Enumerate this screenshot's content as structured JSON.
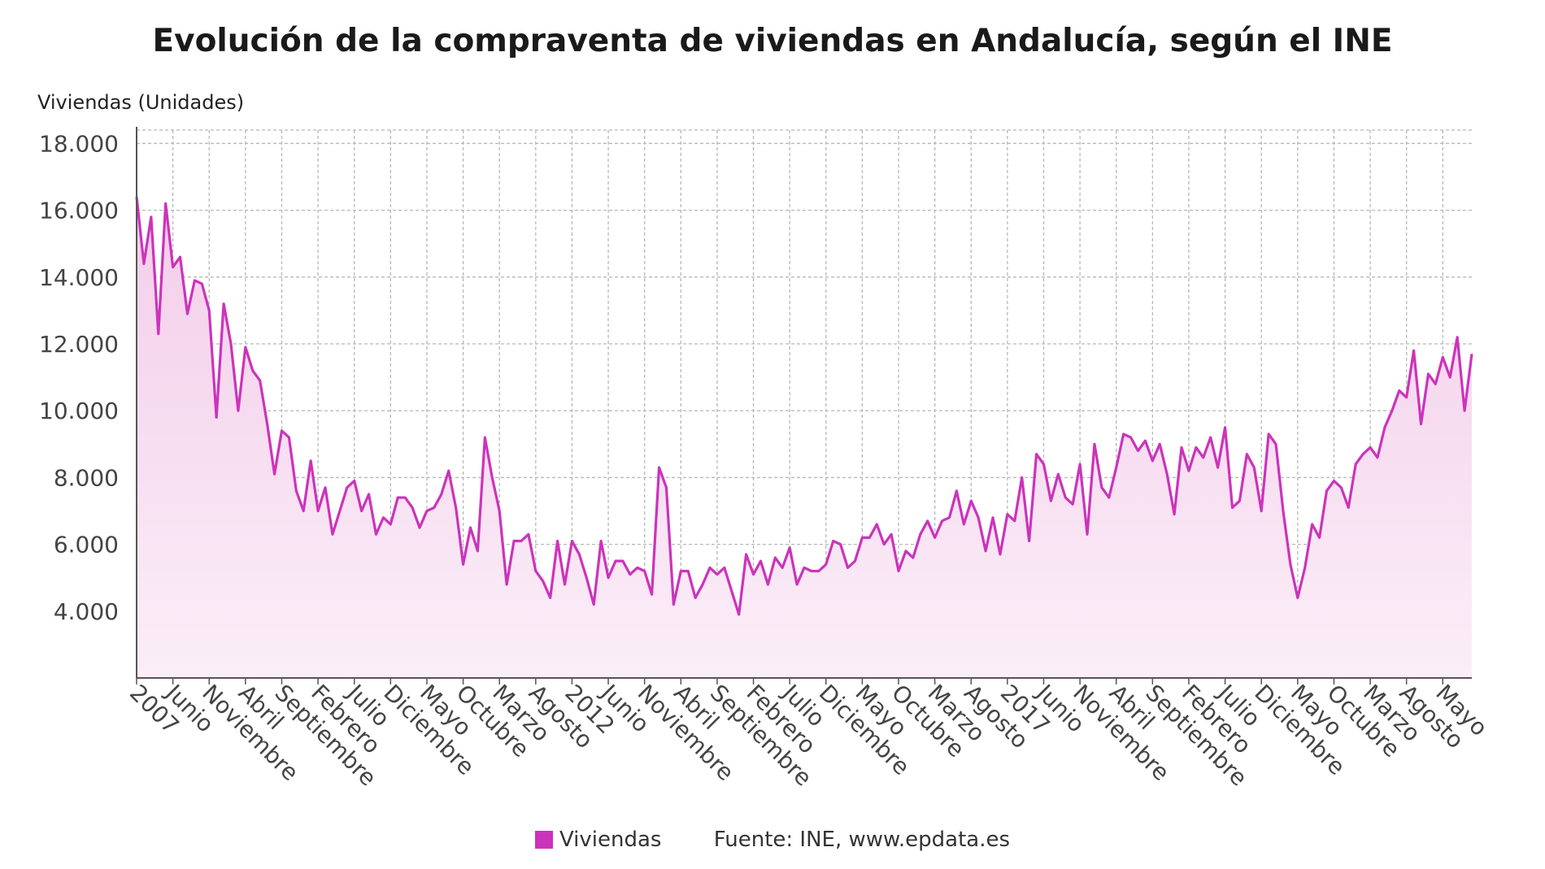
{
  "chart_data": {
    "type": "area",
    "title": "Evolución de la compraventa de viviendas en Andalucía, según el INE",
    "ylabel": "Viviendas (Unidades)",
    "xlabel": "",
    "ylim": [
      2000,
      18400
    ],
    "yticks": [
      4000,
      6000,
      8000,
      10000,
      12000,
      14000,
      16000,
      18000
    ],
    "ytick_labels": [
      "4.000",
      "6.000",
      "8.000",
      "10.000",
      "12.000",
      "14.000",
      "16.000",
      "18.000"
    ],
    "grid": true,
    "start": "2007-01",
    "tick_step_months": 5,
    "x_tick_labels": [
      "2007",
      "Junio",
      "Noviembre",
      "Abril",
      "Septiembre",
      "Febrero",
      "Julio",
      "Diciembre",
      "Mayo",
      "Octubre",
      "Marzo",
      "Agosto",
      "2012",
      "Junio",
      "Noviembre",
      "Abril",
      "Septiembre",
      "Febrero",
      "Julio",
      "Diciembre",
      "Mayo",
      "Octubre",
      "Marzo",
      "Agosto",
      "2017",
      "Junio",
      "Noviembre",
      "Abril",
      "Septiembre",
      "Febrero",
      "Julio",
      "Diciembre",
      "Mayo",
      "Octubre",
      "Marzo",
      "Agosto",
      "Mayo"
    ],
    "series": [
      {
        "name": "Viviendas",
        "color": "#cc33bb",
        "values": [
          16400,
          14400,
          15800,
          12300,
          16200,
          14300,
          14600,
          12900,
          13900,
          13800,
          13000,
          9800,
          13200,
          12000,
          10000,
          11900,
          11200,
          10900,
          9600,
          8100,
          9400,
          9200,
          7600,
          7000,
          8500,
          7000,
          7700,
          6300,
          7000,
          7700,
          7900,
          7000,
          7500,
          6300,
          6800,
          6600,
          7400,
          7400,
          7100,
          6500,
          7000,
          7100,
          7500,
          8200,
          7100,
          5400,
          6500,
          5800,
          9200,
          8000,
          7000,
          4800,
          6100,
          6100,
          6300,
          5200,
          4900,
          4400,
          6100,
          4800,
          6100,
          5700,
          5000,
          4200,
          6100,
          5000,
          5500,
          5500,
          5100,
          5300,
          5200,
          4500,
          8300,
          7700,
          4200,
          5200,
          5200,
          4400,
          4800,
          5300,
          5100,
          5300,
          4600,
          3900,
          5700,
          5100,
          5500,
          4800,
          5600,
          5300,
          5900,
          4800,
          5300,
          5200,
          5200,
          5400,
          6100,
          6000,
          5300,
          5500,
          6200,
          6200,
          6600,
          6000,
          6300,
          5200,
          5800,
          5600,
          6300,
          6700,
          6200,
          6700,
          6800,
          7600,
          6600,
          7300,
          6800,
          5800,
          6800,
          5700,
          6900,
          6700,
          8000,
          6100,
          8700,
          8400,
          7300,
          8100,
          7400,
          7200,
          8400,
          6300,
          9000,
          7700,
          7400,
          8300,
          9300,
          9200,
          8800,
          9100,
          8500,
          9000,
          8100,
          6900,
          8900,
          8200,
          8900,
          8600,
          9200,
          8300,
          9500,
          7100,
          7300,
          8700,
          8300,
          7000,
          9300,
          9000,
          7000,
          5400,
          4400,
          5300,
          6600,
          6200,
          7600,
          7900,
          7700,
          7100,
          8400,
          8700,
          8900,
          8600,
          9500,
          10000,
          10600,
          10400,
          11800,
          9600,
          11100,
          10800,
          11600,
          11000,
          12200,
          10000,
          11700
        ]
      }
    ]
  },
  "legend": {
    "label": "Viviendas"
  },
  "source": "Fuente: INE, www.epdata.es"
}
